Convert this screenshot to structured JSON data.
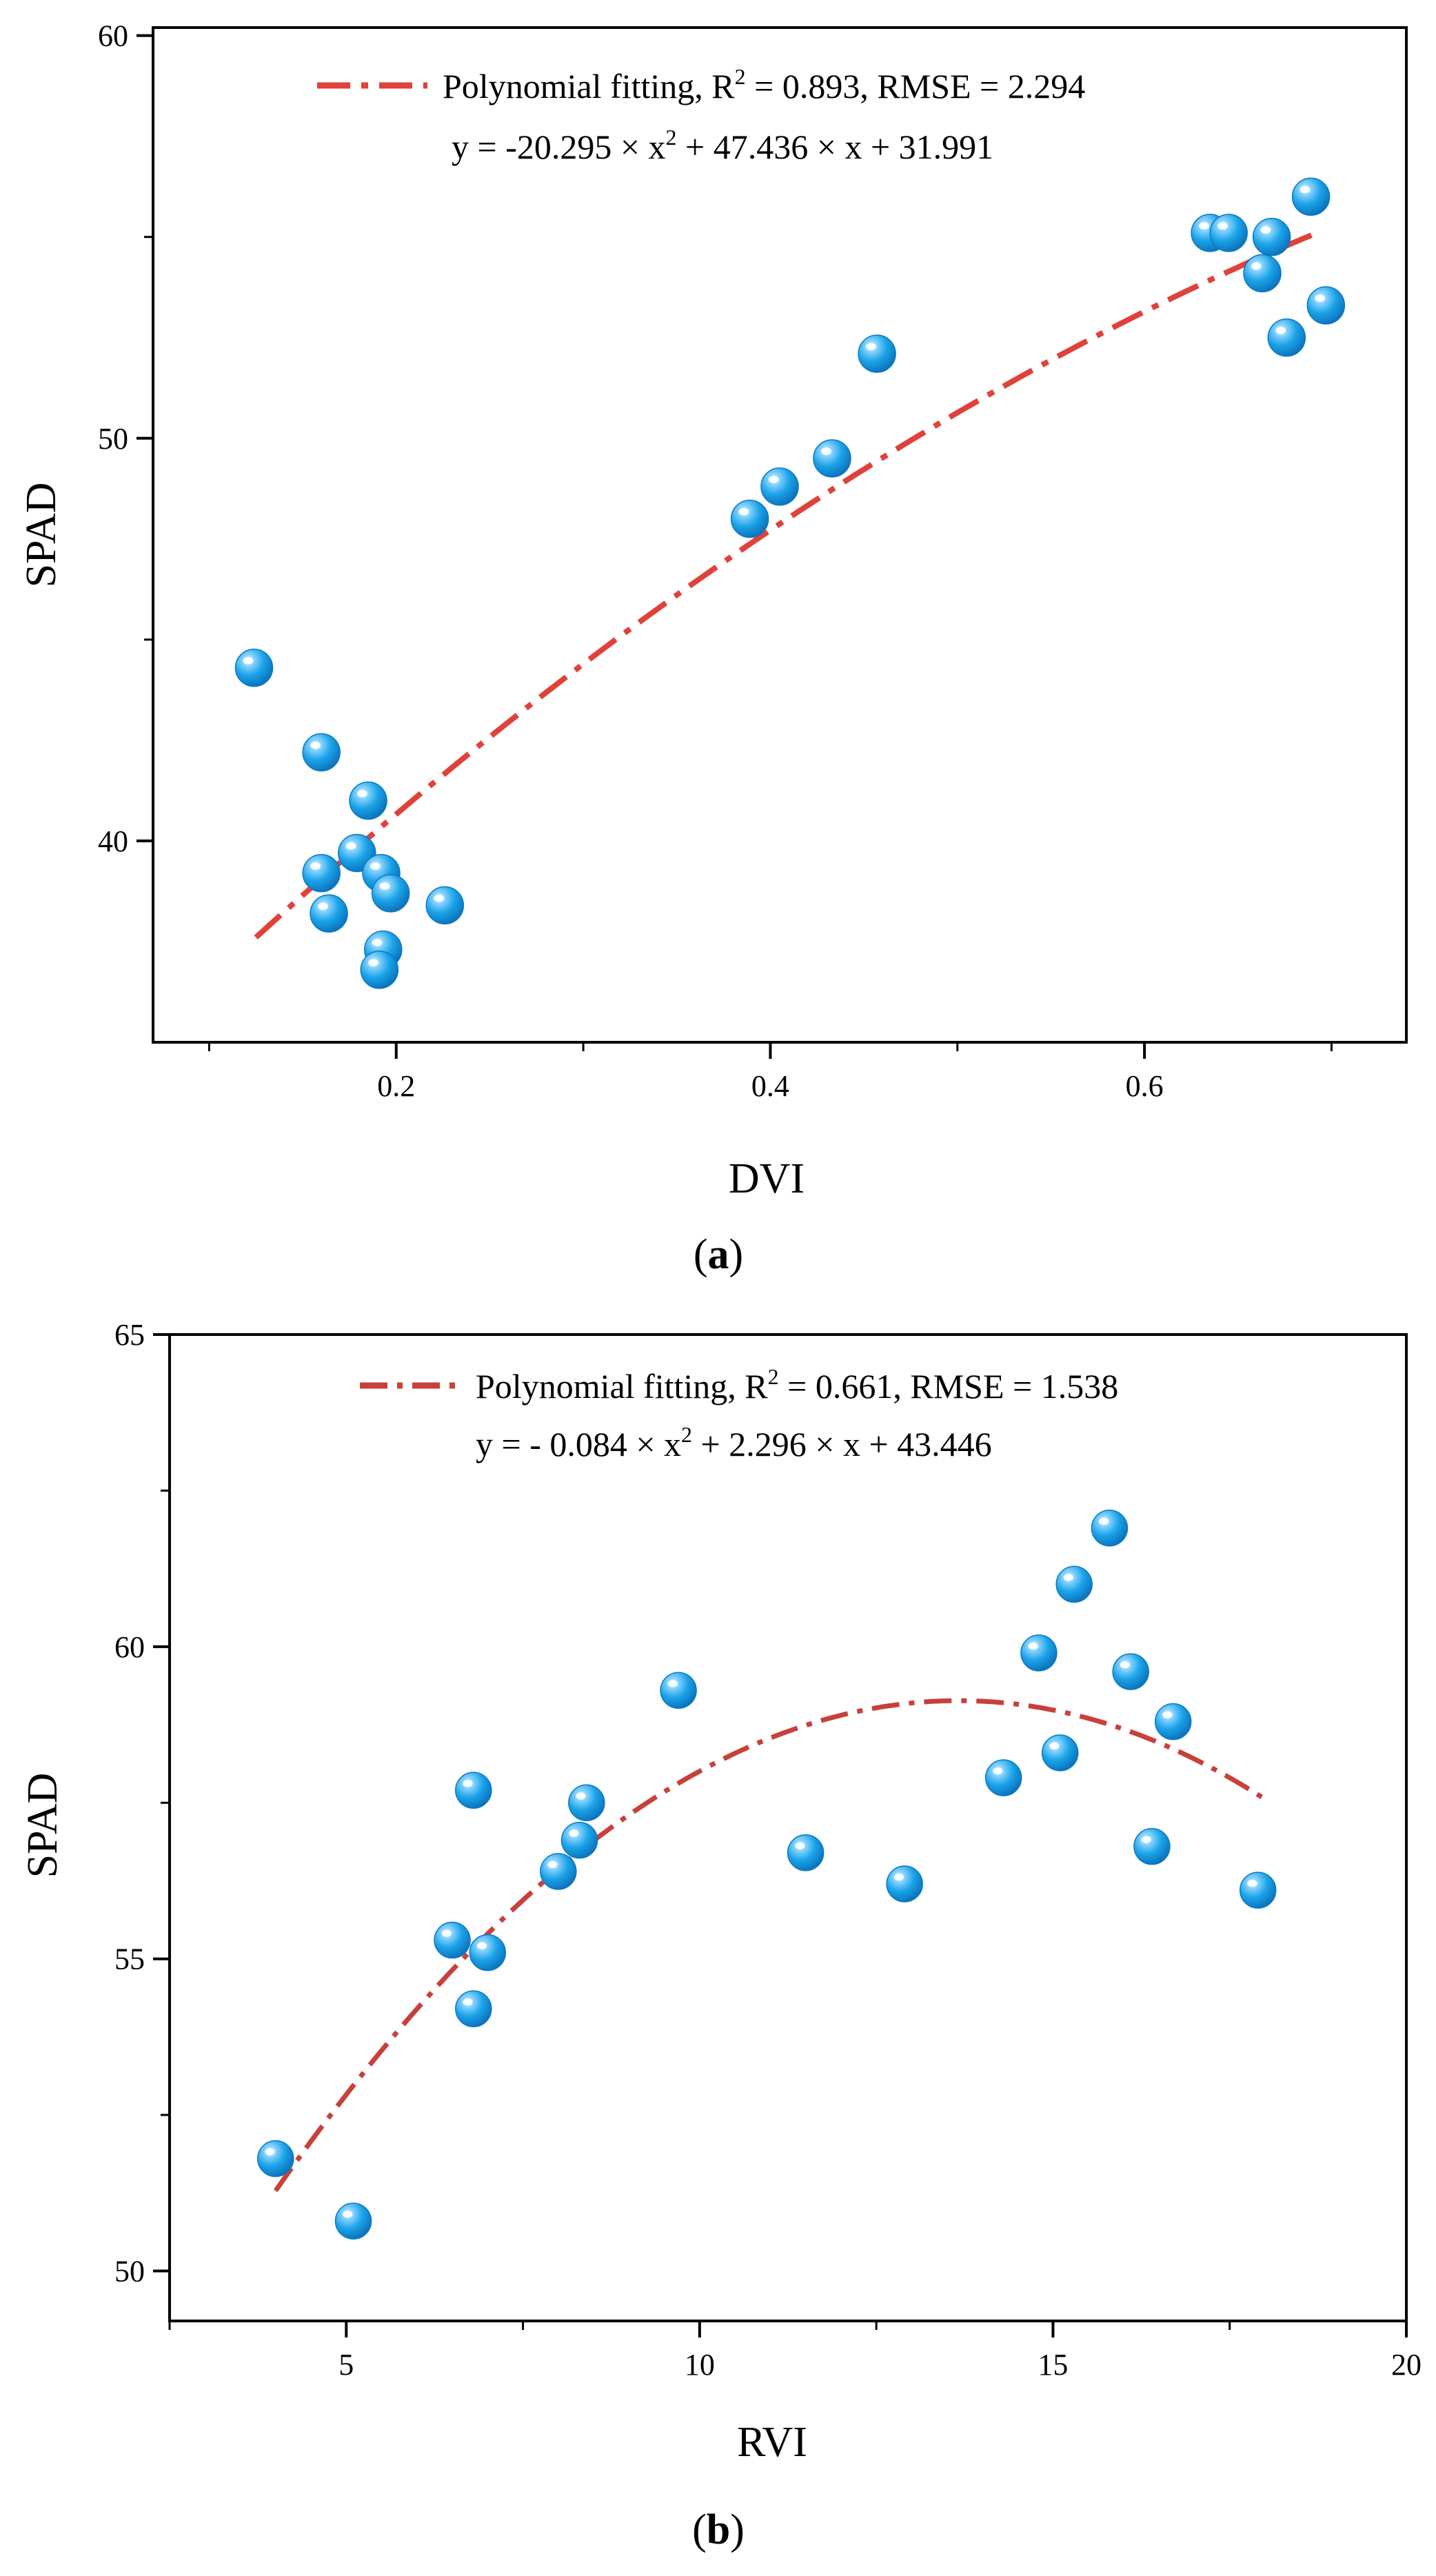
{
  "chart_data": [
    {
      "type": "scatter",
      "panel_label": "a",
      "xlabel": "DVI",
      "ylabel": "SPAD",
      "xlim": [
        0.07,
        0.74
      ],
      "ylim": [
        35.0,
        60.2
      ],
      "x_ticks": [
        0.2,
        0.4,
        0.6
      ],
      "x_tick_labels": [
        "0.2",
        "0.4",
        "0.6"
      ],
      "x_minor_ticks": [
        0.1,
        0.3,
        0.5,
        0.7
      ],
      "y_ticks": [
        40,
        50,
        60
      ],
      "y_tick_labels": [
        "40",
        "50",
        "60"
      ],
      "y_minor_ticks": [
        45,
        55
      ],
      "legend": {
        "line1": "Polynomial fitting, R",
        "sup1": "2",
        "line1_rest": " = 0.893, RMSE = 2.294",
        "eq_a": "y = -20.295 × x",
        "sup2": "2",
        "eq_b": " + 47.436 × x + 31.991"
      },
      "fit": {
        "a": -20.295,
        "b": 47.436,
        "c": 31.991,
        "x_range": [
          0.125,
          0.693
        ]
      },
      "points": [
        [
          0.124,
          44.3
        ],
        [
          0.16,
          42.2
        ],
        [
          0.16,
          39.2
        ],
        [
          0.164,
          38.2
        ],
        [
          0.179,
          39.7
        ],
        [
          0.185,
          41.0
        ],
        [
          0.192,
          39.2
        ],
        [
          0.197,
          38.7
        ],
        [
          0.193,
          37.3
        ],
        [
          0.191,
          36.8
        ],
        [
          0.226,
          38.4
        ],
        [
          0.389,
          48.0
        ],
        [
          0.405,
          48.8
        ],
        [
          0.433,
          49.5
        ],
        [
          0.457,
          52.1
        ],
        [
          0.635,
          55.1
        ],
        [
          0.645,
          55.1
        ],
        [
          0.663,
          54.1
        ],
        [
          0.668,
          55.0
        ],
        [
          0.676,
          52.5
        ],
        [
          0.689,
          56.0
        ],
        [
          0.697,
          53.3
        ]
      ]
    },
    {
      "type": "scatter",
      "panel_label": "b",
      "xlabel": "RVI",
      "ylabel": "SPAD",
      "xlim": [
        2.5,
        20.0
      ],
      "ylim": [
        49.2,
        65.0
      ],
      "x_ticks": [
        5,
        10,
        15,
        20
      ],
      "x_tick_labels": [
        "5",
        "10",
        "15",
        "20"
      ],
      "x_minor_ticks": [
        2.5,
        7.5,
        12.5,
        17.5
      ],
      "y_ticks": [
        50,
        55,
        60,
        65
      ],
      "y_tick_labels": [
        "50",
        "55",
        "60",
        "65"
      ],
      "y_minor_ticks": [
        52.5,
        57.5,
        62.5
      ],
      "legend": {
        "line1": "Polynomial fitting, R",
        "sup1": "2",
        "line1_rest": " = 0.661, RMSE = 1.538",
        "eq_a": "y = - 0.084 × x",
        "sup2": "2",
        "eq_b": " + 2.296 × x + 43.446"
      },
      "fit": {
        "a": -0.084,
        "b": 2.296,
        "c": 43.446,
        "x_range": [
          4.0,
          18.0
        ]
      },
      "points": [
        [
          4.0,
          51.8
        ],
        [
          5.1,
          50.8
        ],
        [
          6.5,
          55.3
        ],
        [
          6.8,
          54.2
        ],
        [
          6.8,
          57.7
        ],
        [
          7.0,
          55.1
        ],
        [
          8.0,
          56.4
        ],
        [
          8.3,
          56.9
        ],
        [
          8.4,
          57.5
        ],
        [
          9.7,
          59.3
        ],
        [
          11.5,
          56.7
        ],
        [
          12.9,
          56.2
        ],
        [
          14.3,
          57.9
        ],
        [
          14.8,
          59.9
        ],
        [
          15.1,
          58.3
        ],
        [
          15.3,
          61.0
        ],
        [
          15.8,
          61.9
        ],
        [
          16.1,
          59.6
        ],
        [
          16.4,
          56.8
        ],
        [
          16.7,
          58.8
        ],
        [
          17.9,
          56.1
        ]
      ]
    }
  ],
  "colors": {
    "fit_line": "#e0413a",
    "point_fill": "#1aa3e8",
    "point_dark": "#0b79c4",
    "axis": "#000000"
  }
}
